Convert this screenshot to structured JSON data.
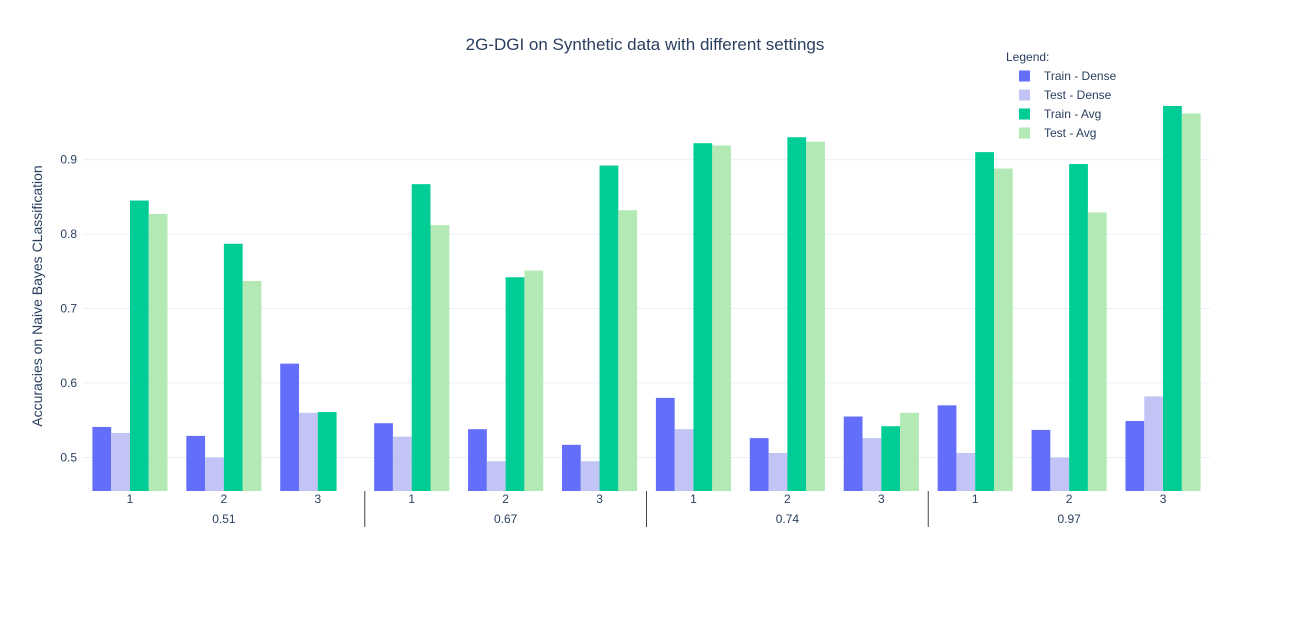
{
  "chart_data": {
    "type": "bar",
    "title": "2G-DGI on Synthetic data with different settings",
    "xlabel": "",
    "ylabel": "Accuracies on Naive Bayes CLassification",
    "ylim": [
      0.455,
      0.98
    ],
    "yticks": [
      0.5,
      0.6,
      0.7,
      0.8,
      0.9
    ],
    "ytick_labels": [
      "0.5",
      "0.6",
      "0.7",
      "0.8",
      "0.9"
    ],
    "legend_title": "Legend:",
    "legend_position": "top-right",
    "groups": [
      {
        "label": "0.51",
        "categories": [
          "1",
          "2",
          "3"
        ]
      },
      {
        "label": "0.67",
        "categories": [
          "1",
          "2",
          "3"
        ]
      },
      {
        "label": "0.74",
        "categories": [
          "1",
          "2",
          "3"
        ]
      },
      {
        "label": "0.97",
        "categories": [
          "1",
          "2",
          "3"
        ]
      }
    ],
    "series": [
      {
        "name": "Train - Dense",
        "color": "#636efa",
        "values": [
          0.541,
          0.529,
          0.626,
          0.546,
          0.538,
          0.517,
          0.58,
          0.526,
          0.555,
          0.57,
          0.537,
          0.549
        ]
      },
      {
        "name": "Test - Dense",
        "color": "#c1c4f5",
        "values": [
          0.533,
          0.5,
          0.56,
          0.528,
          0.495,
          0.495,
          0.538,
          0.506,
          0.526,
          0.506,
          0.5,
          0.582
        ]
      },
      {
        "name": "Train - Avg",
        "color": "#00cc96",
        "values": [
          0.845,
          0.787,
          0.561,
          0.867,
          0.742,
          0.892,
          0.922,
          0.93,
          0.542,
          0.91,
          0.894,
          0.972
        ]
      },
      {
        "name": "Test - Avg",
        "color": "#b3e9b5",
        "values": [
          0.827,
          0.737,
          null,
          0.812,
          0.751,
          0.832,
          0.919,
          0.924,
          0.56,
          0.888,
          0.829,
          0.962
        ]
      }
    ]
  }
}
